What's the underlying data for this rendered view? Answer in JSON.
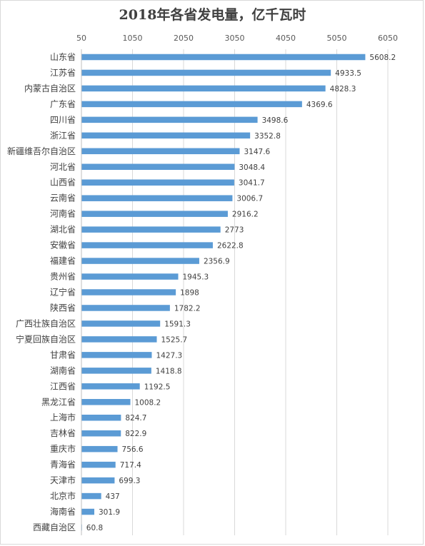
{
  "chart_data": {
    "type": "bar",
    "orientation": "horizontal",
    "title": "2018年各省发电量，亿千瓦时",
    "xlabel": "",
    "ylabel": "",
    "xlim": [
      50,
      6050
    ],
    "ticks": [
      50,
      1050,
      2050,
      3050,
      4050,
      5050,
      6050
    ],
    "grid": true,
    "legend": "none",
    "bar_color": "#5b9bd5",
    "categories": [
      "山东省",
      "江苏省",
      "内蒙古自治区",
      "广东省",
      "四川省",
      "浙江省",
      "新疆维吾尔自治区",
      "河北省",
      "山西省",
      "云南省",
      "河南省",
      "湖北省",
      "安徽省",
      "福建省",
      "贵州省",
      "辽宁省",
      "陕西省",
      "广西壮族自治区",
      "宁夏回族自治区",
      "甘肃省",
      "湖南省",
      "江西省",
      "黑龙江省",
      "上海市",
      "吉林省",
      "重庆市",
      "青海省",
      "天津市",
      "北京市",
      "海南省",
      "西藏自治区"
    ],
    "values": [
      5608.2,
      4933.5,
      4828.3,
      4369.6,
      3498.6,
      3352.8,
      3147.6,
      3048.4,
      3041.7,
      3006.7,
      2916.2,
      2773,
      2622.8,
      2356.9,
      1945.3,
      1898,
      1782.2,
      1591.3,
      1525.7,
      1427.3,
      1418.8,
      1192.5,
      1008.2,
      824.7,
      822.9,
      756.6,
      717.4,
      699.3,
      437,
      301.9,
      60.8
    ],
    "value_labels": [
      "5608.2",
      "4933.5",
      "4828.3",
      "4369.6",
      "3498.6",
      "3352.8",
      "3147.6",
      "3048.4",
      "3041.7",
      "3006.7",
      "2916.2",
      "2773",
      "2622.8",
      "2356.9",
      "1945.3",
      "1898",
      "1782.2",
      "1591.3",
      "1525.7",
      "1427.3",
      "1418.8",
      "1192.5",
      "1008.2",
      "824.7",
      "822.9",
      "756.6",
      "717.4",
      "699.3",
      "437",
      "301.9",
      "60.8"
    ]
  }
}
